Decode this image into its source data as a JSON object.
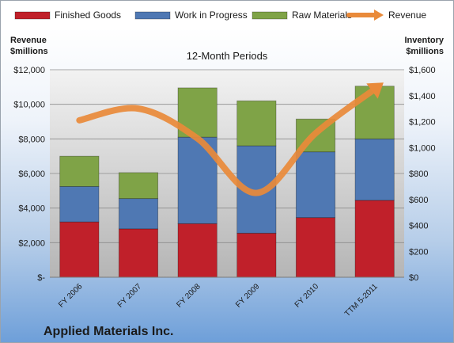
{
  "company": "Applied Materials Inc.",
  "chart_data": {
    "type": "bar",
    "subtitle": "12-Month Periods",
    "categories": [
      "FY 2006",
      "FY 2007",
      "FY 2008",
      "FY 2009",
      "FY 2010",
      "TTM 5-2011"
    ],
    "stacked": true,
    "series": [
      {
        "name": "Finished Goods",
        "values": [
          3200,
          2800,
          3100,
          2550,
          3450,
          4450
        ],
        "color": "#c0202a"
      },
      {
        "name": "Work in Progress",
        "values": [
          2050,
          1750,
          5000,
          5050,
          3800,
          3550
        ],
        "color": "#4f78b3"
      },
      {
        "name": "Raw Materials",
        "values": [
          1750,
          1500,
          2850,
          2600,
          1900,
          3050
        ],
        "color": "#7fa347"
      }
    ],
    "line_series": {
      "name": "Revenue",
      "axis": "right",
      "color": "#e98a3a",
      "values": [
        1210,
        1300,
        1070,
        650,
        1110,
        1450
      ]
    },
    "left_axis": {
      "label_line1": "Revenue",
      "label_line2": "$millions",
      "ylim": [
        0,
        12000
      ],
      "ticks": [
        "$-",
        "$2,000",
        "$4,000",
        "$6,000",
        "$8,000",
        "$10,000",
        "$12,000"
      ]
    },
    "right_axis": {
      "label_line1": "Inventory",
      "label_line2": "$millions",
      "ylim": [
        0,
        1600
      ],
      "ticks": [
        "$0",
        "$200",
        "$400",
        "$600",
        "$800",
        "$1,000",
        "$1,200",
        "$1,400",
        "$1,600"
      ]
    },
    "legend_position": "top",
    "grid": true
  }
}
